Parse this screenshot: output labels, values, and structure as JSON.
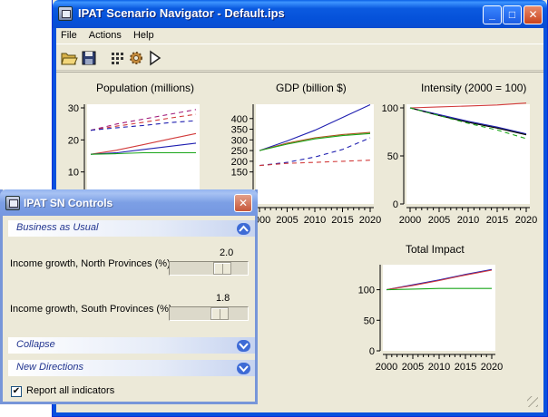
{
  "main_window": {
    "title": "IPAT Scenario Navigator - Default.ips",
    "menu": [
      "File",
      "Actions",
      "Help"
    ],
    "title_buttons": [
      "minimize",
      "maximize",
      "close"
    ],
    "toolbar": [
      "open-folder-icon",
      "save-icon",
      "grid-icon",
      "gear-icon",
      "play-icon"
    ]
  },
  "chart_data": [
    {
      "id": "population",
      "type": "line",
      "title": "Population (millions)",
      "x": [
        2000,
        2005,
        2010,
        2015,
        2020
      ],
      "ylim": [
        0,
        30
      ],
      "yticks": [
        "30",
        "20",
        "10"
      ],
      "series": [
        {
          "color": "#d23b3b",
          "style": "solid",
          "values": [
            15.5,
            16.8,
            18.5,
            20.3,
            22.0
          ]
        },
        {
          "color": "#1f1fb0",
          "style": "solid",
          "values": [
            15.5,
            16.0,
            17.0,
            18.0,
            19.0
          ]
        },
        {
          "color": "#1aa61a",
          "style": "solid",
          "values": [
            15.5,
            15.7,
            16.0,
            16.0,
            16.0
          ]
        },
        {
          "color": "#a01a7a",
          "style": "dashed",
          "values": [
            23.0,
            25.0,
            26.5,
            28.0,
            29.5
          ]
        },
        {
          "color": "#d23b3b",
          "style": "dashed",
          "values": [
            23.0,
            24.3,
            25.5,
            26.8,
            28.0
          ]
        },
        {
          "color": "#1f1fb0",
          "style": "dashed",
          "values": [
            23.0,
            23.8,
            24.5,
            25.4,
            26.0
          ]
        }
      ]
    },
    {
      "id": "gdp",
      "type": "line",
      "title": "GDP (billion $)",
      "x": [
        2000,
        2005,
        2010,
        2015,
        2020
      ],
      "ylim": [
        0,
        450
      ],
      "yticks": [
        "400",
        "350",
        "300",
        "250",
        "200",
        "150"
      ],
      "xticks": [
        "2000",
        "2005",
        "2010",
        "2015",
        "2020"
      ],
      "series": [
        {
          "color": "#1f1fb0",
          "style": "solid",
          "values": [
            250,
            295,
            345,
            405,
            465
          ]
        },
        {
          "color": "#a8531a",
          "style": "solid",
          "values": [
            250,
            285,
            310,
            325,
            335
          ]
        },
        {
          "color": "#1aa61a",
          "style": "solid",
          "values": [
            250,
            280,
            305,
            320,
            330
          ]
        },
        {
          "color": "#1f1fb0",
          "style": "dashed",
          "values": [
            180,
            195,
            220,
            255,
            310
          ]
        },
        {
          "color": "#d23b3b",
          "style": "dashed",
          "values": [
            180,
            190,
            195,
            200,
            205
          ]
        }
      ]
    },
    {
      "id": "intensity",
      "type": "line",
      "title": "Intensity (2000 = 100)",
      "x": [
        2000,
        2005,
        2010,
        2015,
        2020
      ],
      "ylim": [
        0,
        100
      ],
      "yticks": [
        "100",
        "50",
        "0"
      ],
      "xticks": [
        "2000",
        "2005",
        "2010",
        "2015",
        "2020"
      ],
      "series": [
        {
          "color": "#d23b3b",
          "style": "solid",
          "values": [
            100,
            101,
            102,
            103,
            105
          ]
        },
        {
          "color": "#1f1fb0",
          "style": "solid",
          "values": [
            100,
            93,
            86,
            80,
            73
          ]
        },
        {
          "color": "#000000",
          "style": "solid",
          "values": [
            100,
            92,
            85,
            79,
            72
          ]
        },
        {
          "color": "#1aa61a",
          "style": "dashed",
          "values": [
            100,
            92,
            84,
            77,
            68
          ]
        }
      ]
    },
    {
      "id": "total_impact",
      "type": "line",
      "title": "Total Impact",
      "x": [
        2000,
        2005,
        2010,
        2015,
        2020
      ],
      "ylim": [
        0,
        135
      ],
      "yticks": [
        "100",
        "50",
        "0"
      ],
      "xticks": [
        "2000",
        "2005",
        "2010",
        "2015",
        "2020"
      ],
      "series": [
        {
          "color": "#1f1fb0",
          "style": "solid",
          "values": [
            100,
            108,
            116,
            125,
            133
          ]
        },
        {
          "color": "#d23b3b",
          "style": "solid",
          "values": [
            100,
            107,
            115,
            124,
            132
          ]
        },
        {
          "color": "#1aa61a",
          "style": "solid",
          "values": [
            100,
            101,
            102,
            102,
            102
          ]
        }
      ]
    }
  ],
  "controls_window": {
    "title": "IPAT SN Controls",
    "sections": {
      "bau": "Business as Usual",
      "collapse": "Collapse",
      "new_directions": "New Directions"
    },
    "sliders": [
      {
        "label": "Income growth, North Provinces (%)",
        "value": "2.0",
        "fraction": 0.72
      },
      {
        "label": "Income growth, South Provinces (%)",
        "value": "1.8",
        "fraction": 0.68
      }
    ],
    "checkbox": {
      "label": "Report all indicators",
      "checked": true
    }
  }
}
